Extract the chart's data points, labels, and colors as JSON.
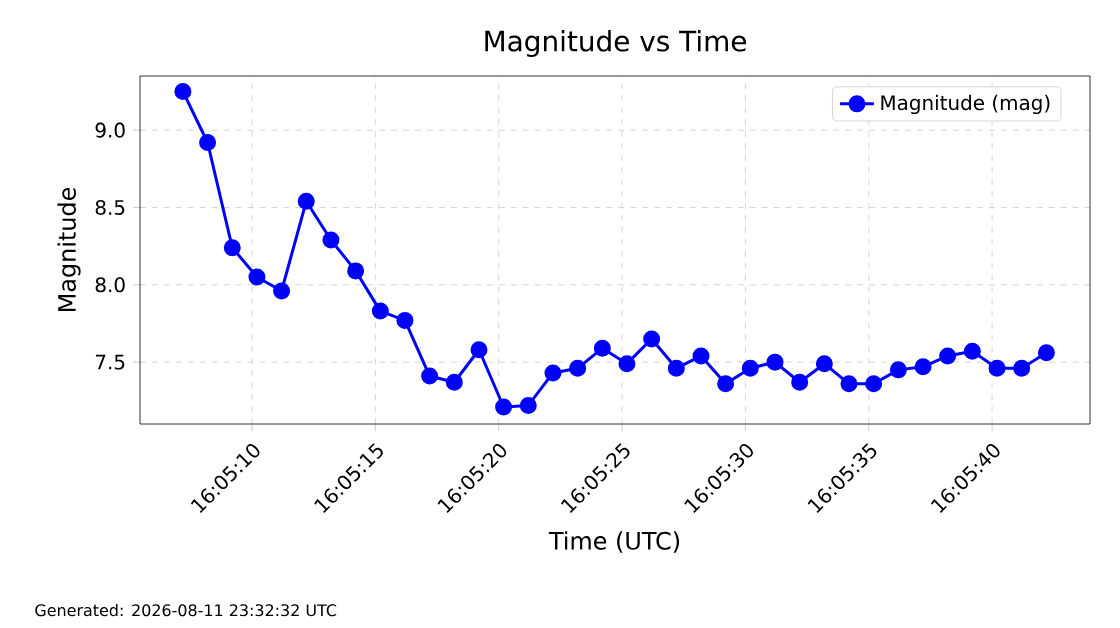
{
  "chart_data": {
    "type": "line",
    "title": "Magnitude vs Time",
    "xlabel": "Time (UTC)",
    "ylabel": "Magnitude",
    "annotations": [
      "Generated: 2026-08-11 23:32:32 UTC"
    ],
    "x": [
      16.085333,
      16.085611,
      16.085889,
      16.086167,
      16.086444,
      16.086722,
      16.087,
      16.087278,
      16.087556,
      16.087833,
      16.088111,
      16.088389,
      16.088667,
      16.088944,
      16.089222,
      16.0895,
      16.089778,
      16.090056,
      16.090333,
      16.090611,
      16.090889,
      16.091167,
      16.091444,
      16.091722,
      16.092,
      16.092278,
      16.092556,
      16.092833,
      16.093111,
      16.093389,
      16.093667,
      16.093944,
      16.094222,
      16.0945,
      16.094778,
      16.095056
    ],
    "series": [
      {
        "name": "Magnitude (mag)",
        "color": "#0000ff",
        "values": [
          9.25,
          8.92,
          8.24,
          8.05,
          7.96,
          8.54,
          8.29,
          8.09,
          7.83,
          7.77,
          7.41,
          7.37,
          7.58,
          7.21,
          7.22,
          7.43,
          7.46,
          7.59,
          7.49,
          7.65,
          7.46,
          7.54,
          7.36,
          7.46,
          7.5,
          7.37,
          7.49,
          7.36,
          7.36,
          7.45,
          7.47,
          7.54,
          7.57,
          7.46,
          7.46,
          7.56
        ]
      }
    ],
    "xlim": [
      16.08485,
      16.095547
    ],
    "xticks": [
      {
        "value": 16.086111,
        "label": "16:05:10"
      },
      {
        "value": 16.0875,
        "label": "16:05:15"
      },
      {
        "value": 16.088889,
        "label": "16:05:20"
      },
      {
        "value": 16.090278,
        "label": "16:05:25"
      },
      {
        "value": 16.091667,
        "label": "16:05:30"
      },
      {
        "value": 16.093056,
        "label": "16:05:35"
      },
      {
        "value": 16.094444,
        "label": "16:05:40"
      }
    ],
    "ylim": [
      7.1,
      9.35
    ],
    "yticks": [
      7.5,
      {
        "value": 8,
        "label": "8.0"
      },
      8.5,
      {
        "value": 9,
        "label": "9.0"
      }
    ],
    "grid": true,
    "legend": "top right",
    "marker": "circle",
    "line_style": "solid"
  }
}
